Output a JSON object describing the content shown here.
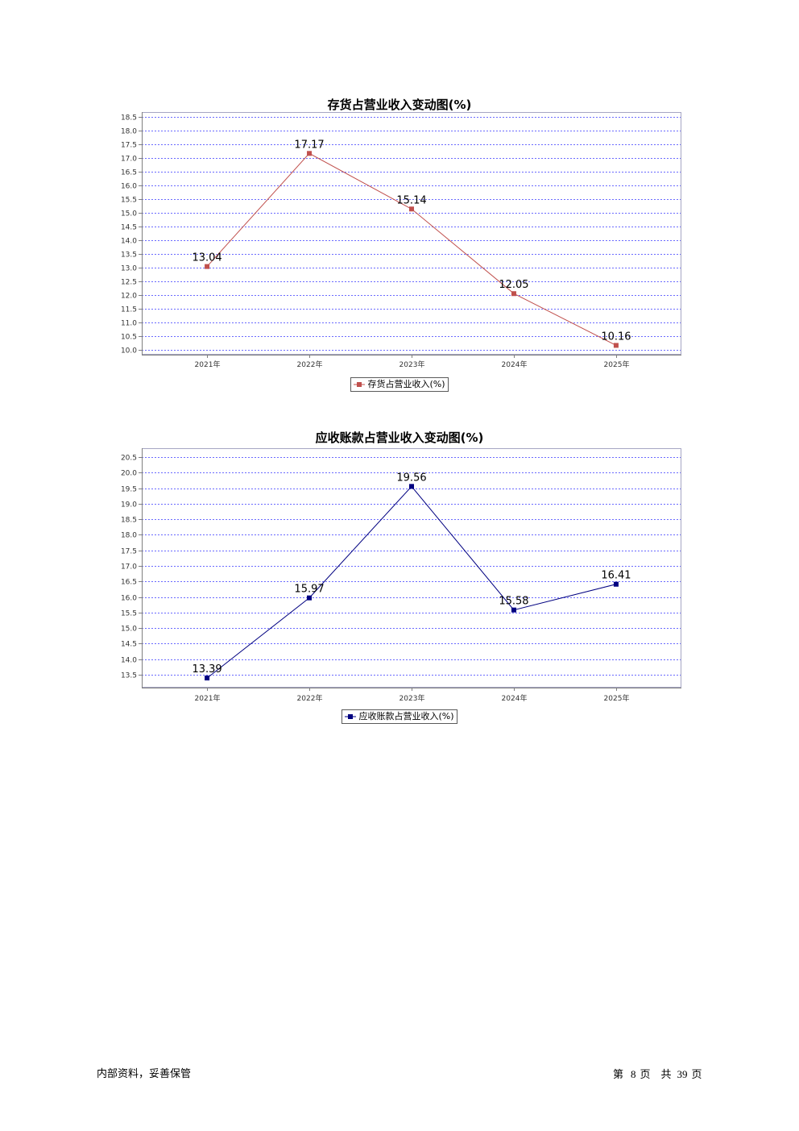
{
  "footer": {
    "left_text": "内部资料，妥善保管",
    "page_prefix": "第",
    "page_number": "8",
    "page_suffix": "页",
    "total_prefix": "共",
    "total_pages": "39",
    "total_suffix": "页"
  },
  "chart_data": [
    {
      "type": "line",
      "title": "存货占营业收入变动图(%)",
      "xlabel": "",
      "ylabel": "",
      "categories": [
        "2021年",
        "2022年",
        "2023年",
        "2024年",
        "2025年"
      ],
      "series": [
        {
          "name": "存货占营业收入(%)",
          "values": [
            13.04,
            17.17,
            15.14,
            12.05,
            10.16
          ],
          "color": "#c0504d",
          "marker": "square"
        }
      ],
      "value_labels": true,
      "yticks": [
        10.0,
        10.5,
        11.0,
        11.5,
        12.0,
        12.5,
        13.0,
        13.5,
        14.0,
        14.5,
        15.0,
        15.5,
        16.0,
        16.5,
        17.0,
        17.5,
        18.0,
        18.5
      ],
      "ylim": [
        9.82,
        18.68
      ],
      "grid": true,
      "grid_style": "dashed",
      "legend": "bottom-center"
    },
    {
      "type": "line",
      "title": "应收账款占营业收入变动图(%)",
      "xlabel": "",
      "ylabel": "",
      "categories": [
        "2021年",
        "2022年",
        "2023年",
        "2024年",
        "2025年"
      ],
      "series": [
        {
          "name": "应收账款占营业收入(%)",
          "values": [
            13.39,
            15.97,
            19.56,
            15.58,
            16.41
          ],
          "color": "#000080",
          "marker": "square"
        }
      ],
      "value_labels": true,
      "yticks": [
        13.5,
        14.0,
        14.5,
        15.0,
        15.5,
        16.0,
        16.5,
        17.0,
        17.5,
        18.0,
        18.5,
        19.0,
        19.5,
        20.0,
        20.5
      ],
      "ylim": [
        13.08,
        20.79
      ],
      "grid": true,
      "grid_style": "dashed",
      "legend": "bottom-center"
    }
  ]
}
